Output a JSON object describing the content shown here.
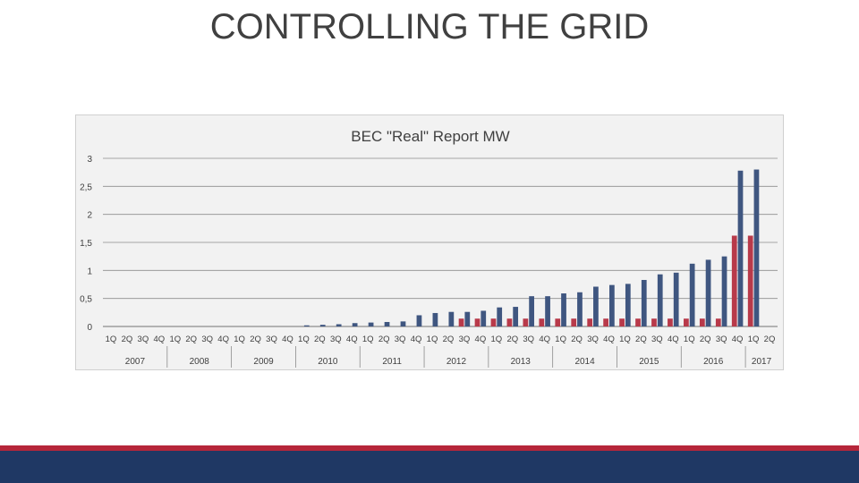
{
  "slide": {
    "title": "CONTROLLING THE GRID"
  },
  "colors": {
    "series_main": "#3f5680",
    "series_secondary": "#b83a4a",
    "grid": "#8c8c8c",
    "band_red": "#b6263a",
    "band_navy": "#1f3864"
  },
  "chart_data": {
    "type": "bar",
    "title": "BEC \"Real\" Report MW",
    "xlabel": "",
    "ylabel": "",
    "ylim": [
      0,
      3
    ],
    "yticks": [
      "0",
      "0,5",
      "1",
      "1,5",
      "2",
      "2,5",
      "3"
    ],
    "grid": true,
    "legend": "none",
    "years": [
      "2007",
      "2008",
      "2009",
      "2010",
      "2011",
      "2012",
      "2013",
      "2014",
      "2015",
      "2016",
      "2017"
    ],
    "categories": [
      "1Q",
      "2Q",
      "3Q",
      "4Q",
      "1Q",
      "2Q",
      "3Q",
      "4Q",
      "1Q",
      "2Q",
      "3Q",
      "4Q",
      "1Q",
      "2Q",
      "3Q",
      "4Q",
      "1Q",
      "2Q",
      "3Q",
      "4Q",
      "1Q",
      "2Q",
      "3Q",
      "4Q",
      "1Q",
      "2Q",
      "3Q",
      "4Q",
      "1Q",
      "2Q",
      "3Q",
      "4Q",
      "1Q",
      "2Q",
      "3Q",
      "4Q",
      "1Q",
      "2Q",
      "3Q",
      "4Q",
      "1Q",
      "2Q"
    ],
    "series": [
      {
        "values": [
          0,
          0,
          0,
          0,
          0,
          0,
          0,
          0,
          0,
          0,
          0,
          0,
          0.02,
          0.03,
          0.04,
          0.06,
          0.07,
          0.08,
          0.09,
          0.2,
          0.24,
          0.26,
          0.26,
          0.28,
          0.34,
          0.35,
          0.54,
          0.54,
          0.59,
          0.61,
          0.71,
          0.74,
          0.76,
          0.83,
          0.93,
          0.96,
          1.12,
          1.19,
          1.25,
          2.78,
          2.8,
          0
        ]
      },
      {
        "values": [
          0,
          0,
          0,
          0,
          0,
          0,
          0,
          0,
          0,
          0,
          0,
          0,
          0,
          0,
          0,
          0,
          0,
          0,
          0,
          0,
          0,
          0,
          0.14,
          0.14,
          0.14,
          0.14,
          0.14,
          0.14,
          0.14,
          0.14,
          0.14,
          0.14,
          0.14,
          0.14,
          0.14,
          0.14,
          0.14,
          0.14,
          0.14,
          1.62,
          1.62,
          0
        ]
      }
    ]
  }
}
